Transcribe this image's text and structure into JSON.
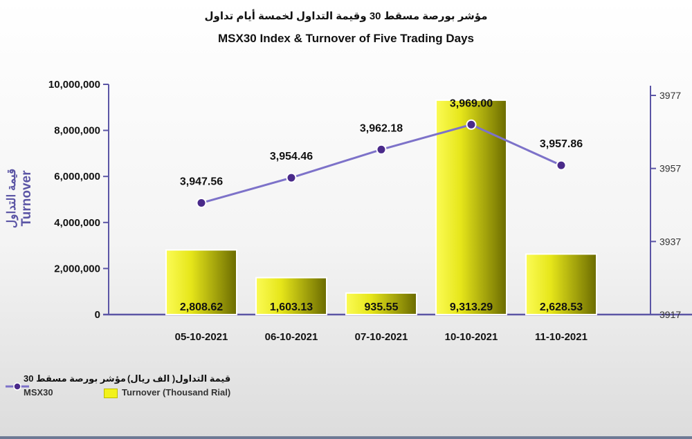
{
  "title_ar": "مؤشر بورصة مسقط 30 وقيمة التداول لخمسة أيام تداول",
  "title_en": "MSX30 Index & Turnover of Five Trading Days",
  "colors": {
    "bar": "#f2f21a",
    "bar_dark": "#6b6b00",
    "line": "#7d72c9",
    "marker": "#4a2a8a",
    "axis": "#5b55a5"
  },
  "chart_data": {
    "type": "bar",
    "title": "MSX30 Index & Turnover of Five Trading Days",
    "categories": [
      "05-10-2021",
      "06-10-2021",
      "07-10-2021",
      "10-10-2021",
      "11-10-2021"
    ],
    "series": [
      {
        "name": "Turnover (Thousand Rial)",
        "type": "bar",
        "axis": "left",
        "values": [
          2808.62,
          1603.13,
          935.55,
          9313.29,
          2628.53
        ],
        "labels": [
          "2,808.62",
          "1,603.13",
          "935.55",
          "9,313.29",
          "2,628.53"
        ]
      },
      {
        "name": "MSX30",
        "type": "line",
        "axis": "right",
        "values": [
          3947.56,
          3954.46,
          3962.18,
          3969.0,
          3957.86
        ],
        "labels": [
          "3,947.56",
          "3,954.46",
          "3,962.18",
          "3,969.00",
          "3,957.86"
        ]
      }
    ],
    "ylabel_ar": "قيمة التداول",
    "ylabel": "Turnover",
    "y_left": {
      "min": 0,
      "max": 10000000,
      "ticks": [
        "0",
        "2,000,000",
        "4,000,000",
        "6,000,000",
        "8,000,000",
        "10,000,000"
      ]
    },
    "y_right": {
      "min": 3917,
      "max": 3977,
      "ticks": [
        "3917",
        "3937",
        "3957",
        "3977"
      ]
    },
    "grid": false,
    "legend_position": "bottom-left"
  },
  "legend": [
    {
      "ar": "مؤشر بورصة مسقط 30",
      "en": "MSX30"
    },
    {
      "ar": "قيمة التداول( الف ريال)",
      "en": "Turnover (Thousand Rial)"
    }
  ]
}
